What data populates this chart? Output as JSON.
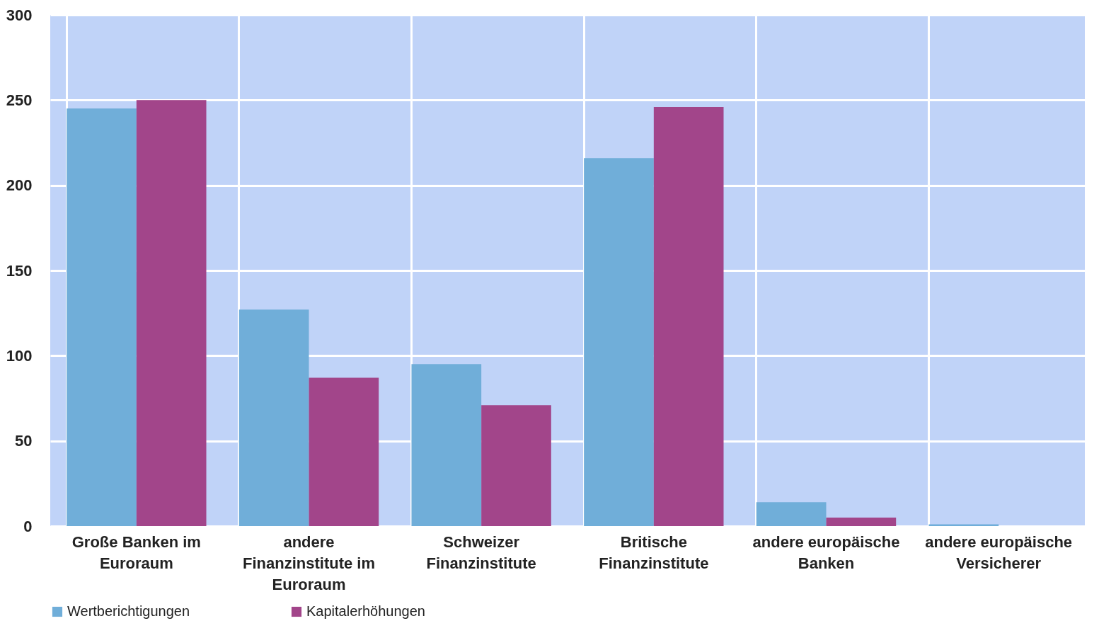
{
  "chart_data": {
    "type": "bar",
    "categories": [
      "Große Banken im Euroraum",
      "andere Finanzinstitute im Euroraum",
      "Schweizer Finanzinstitute",
      "Britische Finanzinstitute",
      "andere europäische Banken",
      "andere europäische Versicherer"
    ],
    "series": [
      {
        "name": "Wertberichtigungen",
        "color": "#70aed9",
        "values": [
          245,
          127,
          95,
          216,
          14,
          1
        ]
      },
      {
        "name": "Kapitalerhöhungen",
        "color": "#a2458a",
        "values": [
          250,
          87,
          71,
          246,
          5,
          0
        ]
      }
    ],
    "ylim": [
      0,
      300
    ],
    "yticks": [
      0,
      50,
      100,
      150,
      200,
      250,
      300
    ],
    "grid": true,
    "legend": "bottom"
  }
}
